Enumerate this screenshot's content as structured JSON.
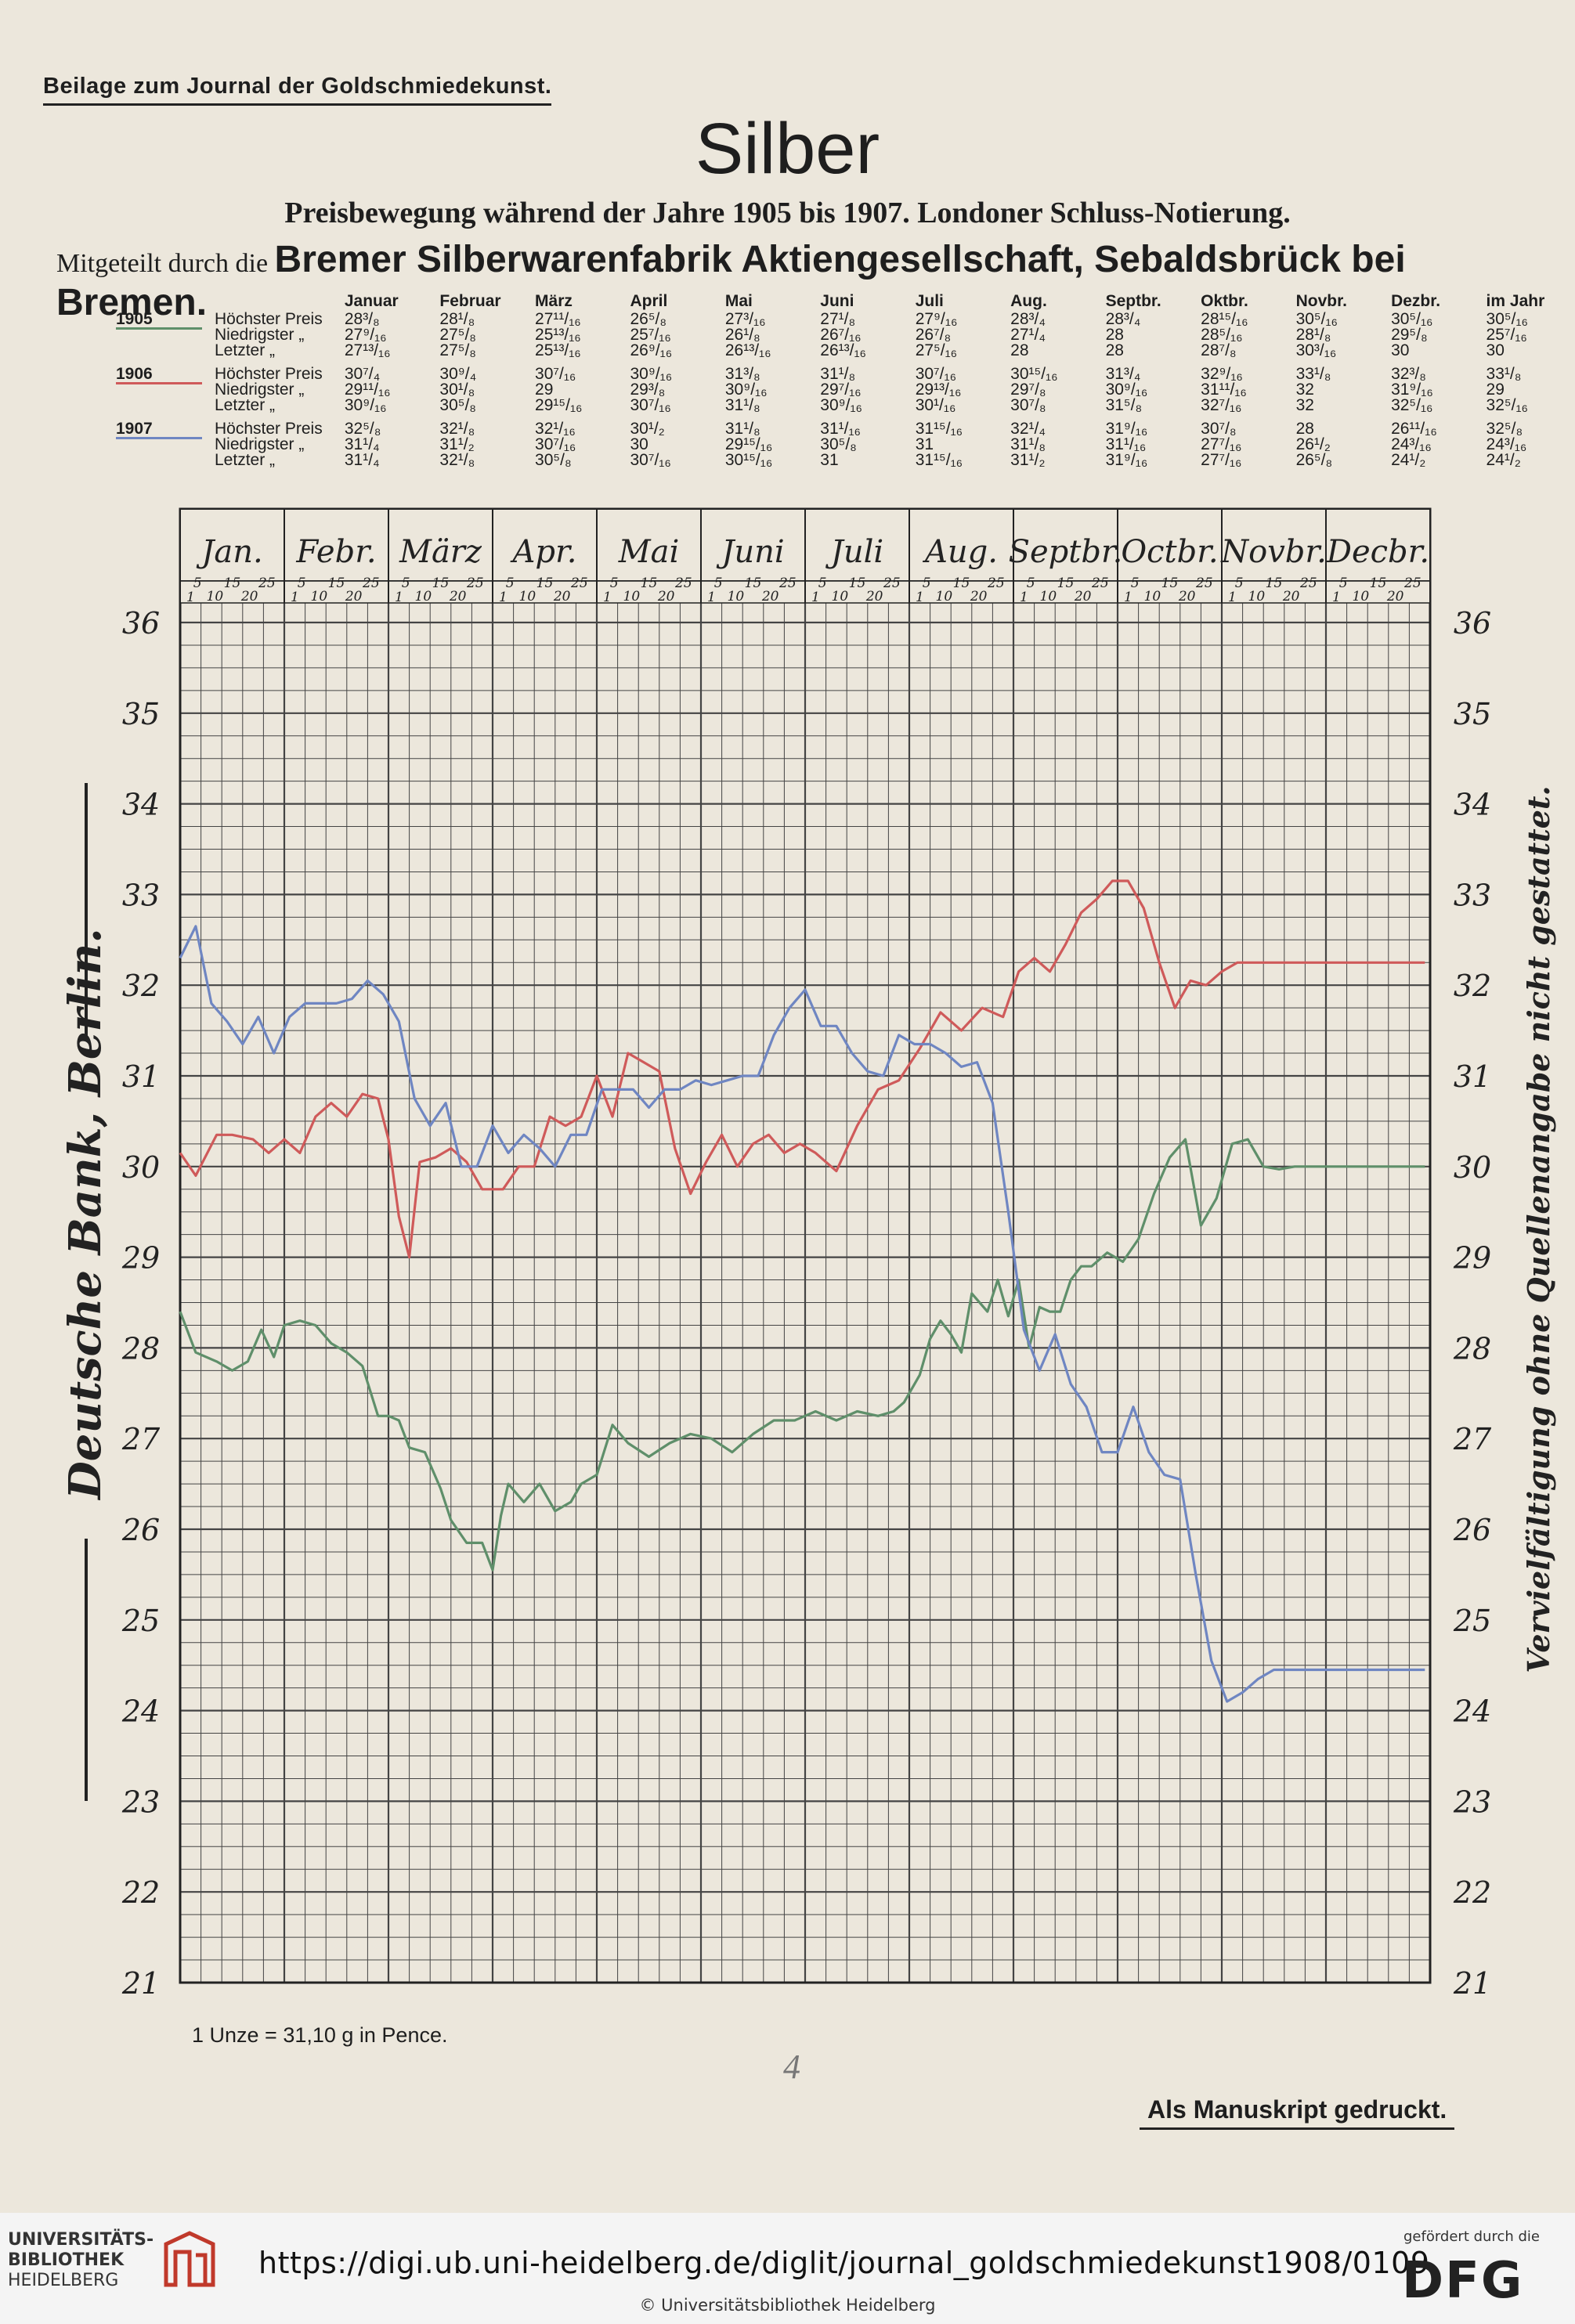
{
  "header": {
    "supplement": "Beilage zum Journal der Goldschmiedekunst.",
    "title": "Silber",
    "subtitle": "Preisbewegung während der Jahre 1905 bis 1907.  Londoner Schluss-Notierung.",
    "credit_prefix": "Mitgeteilt durch die",
    "credit_company": "Bremer Silberwarenfabrik Aktiengesellschaft, Sebaldsbrück bei Bremen."
  },
  "price_table": {
    "columns": [
      "Januar",
      "Februar",
      "März",
      "April",
      "Mai",
      "Juni",
      "Juli",
      "Aug.",
      "Septbr.",
      "Oktbr.",
      "Novbr.",
      "Dezbr.",
      "im Jahr"
    ],
    "years": [
      {
        "year": "1905",
        "color": "#5f8f6a",
        "rows": [
          {
            "label": "Höchster  Preis",
            "values": [
              "28³/₈",
              "28¹/₈",
              "27¹¹/₁₆",
              "26⁵/₈",
              "27³/₁₆",
              "27¹/₈",
              "27⁹/₁₆",
              "28³/₄",
              "28³/₄",
              "28¹⁵/₁₆",
              "30⁵/₁₆",
              "30⁵/₁₆",
              "30⁵/₁₆"
            ]
          },
          {
            "label": "Niedrigster   „",
            "values": [
              "27⁹/₁₆",
              "27⁵/₈",
              "25¹³/₁₆",
              "25⁷/₁₆",
              "26¹/₈",
              "26⁷/₁₆",
              "26⁷/₈",
              "27¹/₄",
              "28",
              "28⁵/₁₆",
              "28¹/₈",
              "29⁵/₈",
              "25⁷/₁₆"
            ]
          },
          {
            "label": "Letzter      „",
            "values": [
              "27¹³/₁₆",
              "27⁵/₈",
              "25¹³/₁₆",
              "26⁹/₁₆",
              "26¹³/₁₆",
              "26¹³/₁₆",
              "27⁵/₁₆",
              "28",
              "28",
              "28⁷/₈",
              "30³/₁₆",
              "30",
              "30"
            ]
          }
        ]
      },
      {
        "year": "1906",
        "color": "#cf5a5a",
        "rows": [
          {
            "label": "Höchster  Preis",
            "values": [
              "30⁷/₄",
              "30⁹/₄",
              "30⁷/₁₆",
              "30⁹/₁₆",
              "31³/₈",
              "31¹/₈",
              "30⁷/₁₆",
              "30¹⁵/₁₆",
              "31³/₄",
              "32⁹/₁₆",
              "33¹/₈",
              "32³/₈",
              "33¹/₈"
            ]
          },
          {
            "label": "Niedrigster   „",
            "values": [
              "29¹¹/₁₆",
              "30¹/₈",
              "29",
              "29³/₈",
              "30⁹/₁₆",
              "29⁷/₁₆",
              "29¹³/₁₆",
              "29⁷/₈",
              "30⁹/₁₆",
              "31¹¹/₁₆",
              "32",
              "31⁹/₁₆",
              "29"
            ]
          },
          {
            "label": "Letzter      „",
            "values": [
              "30⁹/₁₆",
              "30⁵/₈",
              "29¹⁵/₁₆",
              "30⁷/₁₆",
              "31¹/₈",
              "30⁹/₁₆",
              "30¹/₁₆",
              "30⁷/₈",
              "31⁵/₈",
              "32⁷/₁₆",
              "32",
              "32⁵/₁₆",
              "32⁵/₁₆"
            ]
          }
        ]
      },
      {
        "year": "1907",
        "color": "#6f86c2",
        "rows": [
          {
            "label": "Höchster  Preis",
            "values": [
              "32⁵/₈",
              "32¹/₈",
              "32¹/₁₆",
              "30¹/₂",
              "31¹/₈",
              "31¹/₁₆",
              "31¹⁵/₁₆",
              "32¹/₄",
              "31⁹/₁₆",
              "30⁷/₈",
              "28",
              "26¹¹/₁₆",
              "32⁵/₈"
            ]
          },
          {
            "label": "Niedrigster   „",
            "values": [
              "31¹/₄",
              "31¹/₂",
              "30⁷/₁₆",
              "30",
              "29¹⁵/₁₆",
              "30⁵/₈",
              "31",
              "31¹/₈",
              "31¹/₁₆",
              "27⁷/₁₆",
              "26¹/₂",
              "24³/₁₆",
              "24³/₁₆"
            ]
          },
          {
            "label": "Letzter      „",
            "values": [
              "31¹/₄",
              "32¹/₈",
              "30⁵/₈",
              "30⁷/₁₆",
              "30¹⁵/₁₆",
              "31",
              "31¹⁵/₁₆",
              "31¹/₂",
              "31⁹/₁₆",
              "27⁷/₁₆",
              "26⁵/₈",
              "24¹/₂",
              "24¹/₂"
            ]
          }
        ]
      }
    ]
  },
  "chart_data": {
    "type": "line",
    "title": "Silber",
    "ylabel_unit": "1 Unze = 31,10 g in Pence.",
    "months": [
      "Jan.",
      "Febr.",
      "März",
      "Apr.",
      "Mai",
      "Juni",
      "Juli",
      "Aug.",
      "Septbr.",
      "Octbr.",
      "Novbr.",
      "Decbr."
    ],
    "day_ticks": [
      "5",
      "10",
      "15",
      "20",
      "25"
    ],
    "day_tick_first": "1",
    "y_ticks": [
      36,
      35,
      34,
      33,
      32,
      31,
      30,
      29,
      28,
      27,
      26,
      25,
      24,
      23,
      22,
      21
    ],
    "ylim": [
      21,
      36
    ],
    "xlim": [
      0,
      12
    ],
    "grid": true,
    "series": [
      {
        "name": "1905",
        "color": "#5f8f6a",
        "x": [
          0,
          0.15,
          0.35,
          0.5,
          0.65,
          0.78,
          0.9,
          1.0,
          1.15,
          1.3,
          1.45,
          1.6,
          1.75,
          1.9,
          2.0,
          2.1,
          2.2,
          2.35,
          2.5,
          2.6,
          2.75,
          2.9,
          3.0,
          3.08,
          3.15,
          3.3,
          3.45,
          3.6,
          3.75,
          3.85,
          4.0,
          4.15,
          4.3,
          4.5,
          4.7,
          4.9,
          5.1,
          5.3,
          5.5,
          5.7,
          5.9,
          6.1,
          6.3,
          6.5,
          6.7,
          6.85,
          6.95,
          7.1,
          7.2,
          7.3,
          7.4,
          7.5,
          7.6,
          7.75,
          7.85,
          7.95,
          8.05,
          8.15,
          8.25,
          8.35,
          8.45,
          8.55,
          8.65,
          8.75,
          8.9,
          9.05,
          9.2,
          9.35,
          9.5,
          9.65,
          9.8,
          9.95,
          10.1,
          10.25,
          10.4,
          10.55,
          10.7,
          10.85,
          10.95,
          11.05,
          11.15,
          11.3,
          11.5,
          11.65,
          11.8,
          11.95
        ],
        "y": [
          28.4,
          27.95,
          27.85,
          27.75,
          27.85,
          28.2,
          27.9,
          28.25,
          28.3,
          28.25,
          28.05,
          27.95,
          27.8,
          27.25,
          27.25,
          27.2,
          26.9,
          26.85,
          26.45,
          26.1,
          25.85,
          25.85,
          25.55,
          26.15,
          26.5,
          26.3,
          26.5,
          26.2,
          26.3,
          26.5,
          26.6,
          27.15,
          26.95,
          26.8,
          26.95,
          27.05,
          27.0,
          26.85,
          27.05,
          27.2,
          27.2,
          27.3,
          27.2,
          27.3,
          27.25,
          27.3,
          27.4,
          27.7,
          28.1,
          28.3,
          28.15,
          27.95,
          28.6,
          28.4,
          28.75,
          28.35,
          28.75,
          28.0,
          28.45,
          28.4,
          28.4,
          28.75,
          28.9,
          28.9,
          29.05,
          28.95,
          29.2,
          29.7,
          30.1,
          30.3,
          29.35,
          29.65,
          30.25,
          30.3,
          30.0,
          29.97,
          30.0,
          30.0,
          30.0,
          30.0,
          30.0,
          30.0,
          30.0,
          30.0,
          30.0,
          30.0
        ]
      },
      {
        "name": "1906",
        "color": "#cf5a5a",
        "x": [
          0,
          0.15,
          0.35,
          0.5,
          0.7,
          0.85,
          1.0,
          1.15,
          1.3,
          1.45,
          1.6,
          1.75,
          1.9,
          2.0,
          2.1,
          2.2,
          2.3,
          2.45,
          2.6,
          2.75,
          2.9,
          3.1,
          3.25,
          3.4,
          3.55,
          3.7,
          3.85,
          4.0,
          4.15,
          4.3,
          4.45,
          4.6,
          4.75,
          4.9,
          5.05,
          5.2,
          5.35,
          5.5,
          5.65,
          5.8,
          5.95,
          6.1,
          6.3,
          6.5,
          6.7,
          6.9,
          7.1,
          7.3,
          7.5,
          7.7,
          7.9,
          8.05,
          8.2,
          8.35,
          8.5,
          8.65,
          8.8,
          8.95,
          9.1,
          9.25,
          9.4,
          9.55,
          9.7,
          9.85,
          10.0,
          10.15,
          10.3,
          10.45,
          10.6,
          10.75,
          10.9,
          11.05,
          11.2,
          11.4,
          11.6,
          11.8,
          11.95
        ],
        "y": [
          30.15,
          29.9,
          30.35,
          30.35,
          30.3,
          30.15,
          30.3,
          30.15,
          30.55,
          30.7,
          30.55,
          30.8,
          30.75,
          30.3,
          29.45,
          29.0,
          30.05,
          30.1,
          30.2,
          30.05,
          29.75,
          29.75,
          30.0,
          30.0,
          30.55,
          30.45,
          30.55,
          31.0,
          30.55,
          31.25,
          31.15,
          31.05,
          30.2,
          29.7,
          30.05,
          30.35,
          30.0,
          30.25,
          30.35,
          30.15,
          30.25,
          30.15,
          29.95,
          30.45,
          30.85,
          30.95,
          31.3,
          31.7,
          31.5,
          31.75,
          31.65,
          32.15,
          32.3,
          32.15,
          32.45,
          32.8,
          32.95,
          33.15,
          33.15,
          32.85,
          32.25,
          31.75,
          32.05,
          32.0,
          32.15,
          32.25,
          32.25,
          32.25,
          32.25,
          32.25,
          32.25,
          32.25,
          32.25,
          32.25,
          32.25,
          32.25,
          32.25
        ]
      },
      {
        "name": "1907",
        "color": "#6f86c2",
        "x": [
          0,
          0.15,
          0.3,
          0.45,
          0.6,
          0.75,
          0.9,
          1.05,
          1.2,
          1.35,
          1.5,
          1.65,
          1.8,
          1.95,
          2.1,
          2.25,
          2.4,
          2.55,
          2.7,
          2.85,
          3.0,
          3.15,
          3.3,
          3.45,
          3.6,
          3.75,
          3.9,
          4.05,
          4.2,
          4.35,
          4.5,
          4.65,
          4.8,
          4.95,
          5.1,
          5.25,
          5.4,
          5.55,
          5.7,
          5.85,
          6.0,
          6.15,
          6.3,
          6.45,
          6.6,
          6.75,
          6.9,
          7.05,
          7.2,
          7.35,
          7.5,
          7.65,
          7.8,
          7.95,
          8.1,
          8.25,
          8.4,
          8.55,
          8.7,
          8.85,
          9.0,
          9.15,
          9.3,
          9.45,
          9.6,
          9.75,
          9.9,
          10.05,
          10.2,
          10.35,
          10.5,
          10.65,
          10.8,
          10.95,
          11.1,
          11.25,
          11.4,
          11.55,
          11.7,
          11.85,
          11.95
        ],
        "y": [
          32.3,
          32.65,
          31.8,
          31.6,
          31.35,
          31.65,
          31.25,
          31.65,
          31.8,
          31.8,
          31.8,
          31.85,
          32.05,
          31.9,
          31.6,
          30.75,
          30.45,
          30.7,
          30.0,
          30.0,
          30.45,
          30.15,
          30.35,
          30.2,
          30.0,
          30.35,
          30.35,
          30.85,
          30.85,
          30.85,
          30.65,
          30.85,
          30.85,
          30.95,
          30.9,
          30.95,
          31.0,
          31.0,
          31.45,
          31.75,
          31.95,
          31.55,
          31.55,
          31.25,
          31.05,
          31.0,
          31.45,
          31.35,
          31.35,
          31.25,
          31.1,
          31.15,
          30.7,
          29.5,
          28.2,
          27.75,
          28.15,
          27.6,
          27.35,
          26.85,
          26.85,
          27.35,
          26.85,
          26.6,
          26.55,
          25.5,
          24.55,
          24.1,
          24.2,
          24.35,
          24.45,
          24.45,
          24.45,
          24.45,
          24.45,
          24.45,
          24.45,
          24.45,
          24.45,
          24.45,
          24.45
        ]
      }
    ]
  },
  "side_text": {
    "left": "Deutsche Bank, Berlin.",
    "right": "Vervielfältigung ohne Quellenangabe nicht gestattet."
  },
  "notes": {
    "unit": "1 Unze = 31,10 g in Pence.",
    "page_mark": "4",
    "print_note": "Als Manuskript gedruckt."
  },
  "footer": {
    "lib_line1": "UNIVERSITÄTS-",
    "lib_line2": "BIBLIOTHEK",
    "lib_line3": "HEIDELBERG",
    "url": "https://digi.ub.uni-heidelberg.de/diglit/journal_goldschmiedekunst1908/0109",
    "copyright": "© Universitätsbibliothek Heidelberg",
    "dfg_note": "gefördert durch die",
    "dfg_logo": "DFG"
  }
}
